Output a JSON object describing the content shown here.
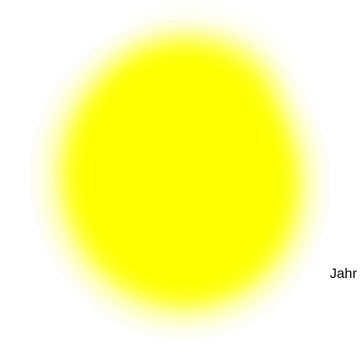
{
  "label": "Jahr",
  "colors": {
    "background": "#ffffff",
    "blob": "#ffff00",
    "text": "#000000"
  }
}
